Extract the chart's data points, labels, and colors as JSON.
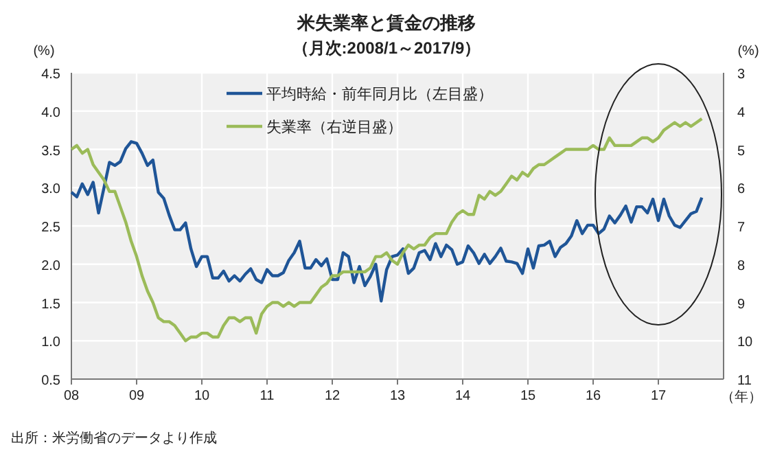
{
  "chart_data": {
    "type": "line",
    "title": "米失業率と賃金の推移",
    "subtitle": "（月次:2008/1～2017/9）",
    "ylabel": "(%)",
    "y2label": "(%)",
    "xlabel": "（年）",
    "annotations": [
      "出所：米労働省のデータより作成"
    ],
    "x": [
      "2008-01",
      "2008-02",
      "2008-03",
      "2008-04",
      "2008-05",
      "2008-06",
      "2008-07",
      "2008-08",
      "2008-09",
      "2008-10",
      "2008-11",
      "2008-12",
      "2009-01",
      "2009-02",
      "2009-03",
      "2009-04",
      "2009-05",
      "2009-06",
      "2009-07",
      "2009-08",
      "2009-09",
      "2009-10",
      "2009-11",
      "2009-12",
      "2010-01",
      "2010-02",
      "2010-03",
      "2010-04",
      "2010-05",
      "2010-06",
      "2010-07",
      "2010-08",
      "2010-09",
      "2010-10",
      "2010-11",
      "2010-12",
      "2011-01",
      "2011-02",
      "2011-03",
      "2011-04",
      "2011-05",
      "2011-06",
      "2011-07",
      "2011-08",
      "2011-09",
      "2011-10",
      "2011-11",
      "2011-12",
      "2012-01",
      "2012-02",
      "2012-03",
      "2012-04",
      "2012-05",
      "2012-06",
      "2012-07",
      "2012-08",
      "2012-09",
      "2012-10",
      "2012-11",
      "2012-12",
      "2013-01",
      "2013-02",
      "2013-03",
      "2013-04",
      "2013-05",
      "2013-06",
      "2013-07",
      "2013-08",
      "2013-09",
      "2013-10",
      "2013-11",
      "2013-12",
      "2014-01",
      "2014-02",
      "2014-03",
      "2014-04",
      "2014-05",
      "2014-06",
      "2014-07",
      "2014-08",
      "2014-09",
      "2014-10",
      "2014-11",
      "2014-12",
      "2015-01",
      "2015-02",
      "2015-03",
      "2015-04",
      "2015-05",
      "2015-06",
      "2015-07",
      "2015-08",
      "2015-09",
      "2015-10",
      "2015-11",
      "2015-12",
      "2016-01",
      "2016-02",
      "2016-03",
      "2016-04",
      "2016-05",
      "2016-06",
      "2016-07",
      "2016-08",
      "2016-09",
      "2016-10",
      "2016-11",
      "2016-12",
      "2017-01",
      "2017-02",
      "2017-03",
      "2017-04",
      "2017-05",
      "2017-06",
      "2017-07",
      "2017-08",
      "2017-09"
    ],
    "series": [
      {
        "name": "平均時給・前年同月比（左目盛）",
        "color": "#1f5597",
        "values": [
          2.94,
          2.88,
          3.05,
          2.91,
          3.07,
          2.67,
          3.0,
          3.33,
          3.29,
          3.34,
          3.51,
          3.6,
          3.58,
          3.45,
          3.29,
          3.36,
          2.94,
          2.86,
          2.64,
          2.45,
          2.45,
          2.54,
          2.2,
          1.97,
          2.1,
          2.1,
          1.82,
          1.82,
          1.91,
          1.78,
          1.85,
          1.78,
          1.87,
          1.94,
          1.8,
          1.76,
          1.93,
          1.85,
          1.85,
          1.89,
          2.05,
          2.15,
          2.3,
          1.95,
          1.95,
          2.06,
          1.98,
          2.07,
          1.8,
          1.8,
          2.15,
          2.1,
          1.76,
          1.97,
          1.72,
          1.84,
          2.0,
          1.52,
          1.93,
          2.1,
          2.12,
          2.2,
          1.88,
          1.95,
          2.15,
          2.18,
          2.06,
          2.27,
          2.1,
          2.25,
          2.19,
          2.0,
          2.03,
          2.24,
          2.15,
          2.01,
          2.13,
          2.01,
          2.1,
          2.21,
          2.04,
          2.03,
          2.01,
          1.88,
          2.2,
          1.95,
          2.24,
          2.25,
          2.3,
          2.1,
          2.22,
          2.27,
          2.37,
          2.57,
          2.4,
          2.51,
          2.51,
          2.4,
          2.46,
          2.63,
          2.54,
          2.64,
          2.76,
          2.55,
          2.75,
          2.75,
          2.67,
          2.85,
          2.57,
          2.85,
          2.63,
          2.51,
          2.48,
          2.57,
          2.66,
          2.69,
          2.87
        ]
      },
      {
        "name": "失業率（右逆目盛）",
        "color": "#9bbb59",
        "axis": "y2",
        "values": [
          5.0,
          4.9,
          5.1,
          5.0,
          5.4,
          5.6,
          5.8,
          6.1,
          6.1,
          6.5,
          6.9,
          7.4,
          7.8,
          8.3,
          8.7,
          9.0,
          9.4,
          9.5,
          9.5,
          9.6,
          9.8,
          10.0,
          9.9,
          9.9,
          9.8,
          9.8,
          9.9,
          9.9,
          9.6,
          9.4,
          9.4,
          9.5,
          9.4,
          9.4,
          9.8,
          9.3,
          9.1,
          9.0,
          9.0,
          9.1,
          9.0,
          9.1,
          9.0,
          9.0,
          9.0,
          8.8,
          8.6,
          8.5,
          8.3,
          8.3,
          8.2,
          8.2,
          8.2,
          8.2,
          8.2,
          8.1,
          7.8,
          7.8,
          7.7,
          7.9,
          8.0,
          7.7,
          7.5,
          7.6,
          7.5,
          7.5,
          7.3,
          7.2,
          7.2,
          7.2,
          6.9,
          6.7,
          6.6,
          6.7,
          6.7,
          6.2,
          6.3,
          6.1,
          6.2,
          6.1,
          5.9,
          5.7,
          5.8,
          5.6,
          5.7,
          5.5,
          5.4,
          5.4,
          5.3,
          5.2,
          5.1,
          5.0,
          5.0,
          5.0,
          5.0,
          5.0,
          4.9,
          5.0,
          5.0,
          4.7,
          4.9,
          4.9,
          4.9,
          4.9,
          4.8,
          4.7,
          4.7,
          4.8,
          4.7,
          4.5,
          4.4,
          4.3,
          4.4,
          4.3,
          4.4,
          4.3,
          4.2
        ]
      }
    ],
    "xlim": [
      "2008-01",
      "2018-01"
    ],
    "xticks": [
      {
        "value": "2008-01",
        "label": "08"
      },
      {
        "value": "2009-01",
        "label": "09"
      },
      {
        "value": "2010-01",
        "label": "10"
      },
      {
        "value": "2011-01",
        "label": "11"
      },
      {
        "value": "2012-01",
        "label": "12"
      },
      {
        "value": "2013-01",
        "label": "13"
      },
      {
        "value": "2014-01",
        "label": "14"
      },
      {
        "value": "2015-01",
        "label": "15"
      },
      {
        "value": "2016-01",
        "label": "16"
      },
      {
        "value": "2017-01",
        "label": "17"
      }
    ],
    "ylim": [
      0.5,
      4.5
    ],
    "yticks": [
      {
        "value": 0.5,
        "label": "0.5"
      },
      {
        "value": 1,
        "label": "1.0"
      },
      {
        "value": 1.5,
        "label": "1.5"
      },
      {
        "value": 2,
        "label": "2.0"
      },
      {
        "value": 2.5,
        "label": "2.5"
      },
      {
        "value": 3,
        "label": "3.0"
      },
      {
        "value": 3.5,
        "label": "3.5"
      },
      {
        "value": 4,
        "label": "4.0"
      },
      {
        "value": 4.5,
        "label": "4.5"
      }
    ],
    "y2lim": [
      11,
      3
    ],
    "y2ticks": [
      3,
      4,
      5,
      6,
      7,
      8,
      9,
      10,
      11
    ],
    "grid": true,
    "legend": "top",
    "marker": "none",
    "line_style": "solid"
  }
}
